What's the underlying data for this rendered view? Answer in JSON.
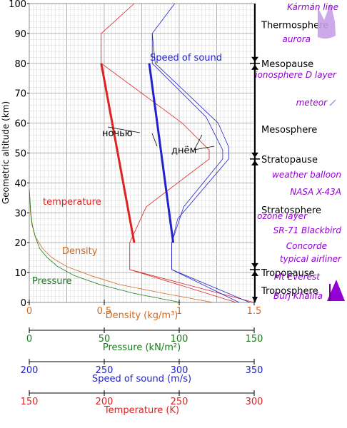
{
  "chart_data": {
    "type": "line",
    "ylabel": "Geometric altitude (km)",
    "ylim": [
      0,
      100
    ],
    "yticks": [
      0,
      10,
      20,
      30,
      40,
      50,
      60,
      70,
      80,
      90,
      100
    ],
    "axes": [
      {
        "key": "density",
        "label": "Density (kg/m³)",
        "range": [
          0,
          1.5
        ],
        "ticks": [
          "0",
          "0.5",
          "1",
          "1.5"
        ],
        "tickvals": [
          0,
          0.5,
          1,
          1.5
        ],
        "color": "#d2691e"
      },
      {
        "key": "pressure",
        "label": "Pressure (kN/m²)",
        "range": [
          0,
          150
        ],
        "ticks": [
          "0",
          "50",
          "100",
          "150"
        ],
        "tickvals": [
          0,
          50,
          100,
          150
        ],
        "color": "#1a7a1a"
      },
      {
        "key": "sound",
        "label": "Speed of sound (m/s)",
        "range": [
          200,
          350
        ],
        "ticks": [
          "200",
          "250",
          "300",
          "350"
        ],
        "tickvals": [
          200,
          250,
          300,
          350
        ],
        "color": "#2222cc"
      },
      {
        "key": "temperature",
        "label": "Temperature (K)",
        "range": [
          150,
          300
        ],
        "ticks": [
          "150",
          "200",
          "250",
          "300"
        ],
        "tickvals": [
          150,
          200,
          250,
          300
        ],
        "color": "#dd2222"
      }
    ],
    "series": [
      {
        "name": "temperature",
        "axis": "temperature",
        "color": "#dd2222",
        "style": "thin",
        "points": [
          [
            288,
            0
          ],
          [
            217,
            11
          ],
          [
            217,
            20
          ],
          [
            228,
            32
          ],
          [
            270,
            48
          ],
          [
            270,
            51
          ],
          [
            252,
            60
          ],
          [
            198,
            80
          ],
          [
            198,
            90
          ],
          [
            220,
            100
          ]
        ]
      },
      {
        "name": "temperature-envelope",
        "axis": "temperature",
        "color": "#dd2222",
        "style": "thin",
        "points": [
          [
            300,
            0
          ],
          [
            217,
            11
          ]
        ]
      },
      {
        "name": "Speed of sound",
        "axis": "sound",
        "color": "#2222cc",
        "style": "thin",
        "points": [
          [
            340,
            0
          ],
          [
            295,
            11
          ],
          [
            295,
            20
          ],
          [
            303,
            32
          ],
          [
            329,
            48
          ],
          [
            329,
            51
          ],
          [
            318,
            62
          ],
          [
            282,
            80
          ],
          [
            282,
            90
          ],
          [
            297,
            100
          ]
        ]
      },
      {
        "name": "sound-envelope",
        "axis": "sound",
        "color": "#2222cc",
        "style": "thin",
        "points": [
          [
            347,
            0
          ],
          [
            295,
            11
          ],
          [
            295,
            20
          ],
          [
            299,
            28
          ],
          [
            333,
            48
          ],
          [
            333,
            52
          ],
          [
            326,
            60
          ],
          [
            284,
            80
          ],
          [
            282,
            90
          ]
        ]
      },
      {
        "name": "Density",
        "axis": "density",
        "color": "#d2691e",
        "style": "thin",
        "points": [
          [
            1.225,
            0
          ],
          [
            0.9,
            3
          ],
          [
            0.6,
            6
          ],
          [
            0.41,
            9
          ],
          [
            0.25,
            12
          ],
          [
            0.15,
            15
          ],
          [
            0.09,
            18
          ],
          [
            0.04,
            22
          ],
          [
            0.018,
            26
          ],
          [
            0.008,
            30
          ],
          [
            0,
            38
          ]
        ]
      },
      {
        "name": "Pressure",
        "axis": "pressure",
        "color": "#1a7a1a",
        "style": "thin",
        "points": [
          [
            101,
            0
          ],
          [
            70,
            3
          ],
          [
            47,
            6
          ],
          [
            30,
            9
          ],
          [
            19,
            12
          ],
          [
            12,
            15
          ],
          [
            7,
            18
          ],
          [
            4,
            22
          ],
          [
            2,
            26
          ],
          [
            1,
            30
          ],
          [
            0,
            38
          ]
        ]
      },
      {
        "name": "ночью",
        "axis": "temperature",
        "color": "#dd2222",
        "style": "thick",
        "points": [
          [
            198,
            80
          ],
          [
            220,
            20
          ]
        ]
      },
      {
        "name": "днём",
        "axis": "sound",
        "color": "#2222cc",
        "style": "thick",
        "points": [
          [
            280,
            80
          ],
          [
            296,
            20
          ]
        ]
      }
    ],
    "labels": [
      {
        "text": "Speed of sound",
        "color": "#2222cc"
      },
      {
        "text": "temperature",
        "color": "#dd2222"
      },
      {
        "text": "Density",
        "color": "#d2691e"
      },
      {
        "text": "Pressure",
        "color": "#1a7a1a"
      },
      {
        "text": "ночью",
        "color": "#000000"
      },
      {
        "text": "днём",
        "color": "#000000"
      }
    ],
    "layers": [
      {
        "name": "Thermosphere",
        "alt": 93,
        "boundary": null
      },
      {
        "name": "Mesopause",
        "alt": 80,
        "boundary": 80
      },
      {
        "name": "Mesosphere",
        "alt": 58,
        "boundary": null
      },
      {
        "name": "Stratopause",
        "alt": 48,
        "boundary": 48
      },
      {
        "name": "Stratosphere",
        "alt": 31,
        "boundary": null
      },
      {
        "name": "Tropopause",
        "alt": 10,
        "boundary": 11
      },
      {
        "name": "Troposphere",
        "alt": 4,
        "boundary": null
      }
    ],
    "annotations": [
      {
        "text": "Kármán line",
        "alt": 100
      },
      {
        "text": "aurora",
        "alt": 86
      },
      {
        "text": "ionosphere D layer",
        "alt": 75
      },
      {
        "text": "meteor",
        "alt": 65
      },
      {
        "text": "weather balloon",
        "alt": 40
      },
      {
        "text": "NASA X-43A",
        "alt": 34
      },
      {
        "text": "ozone layer",
        "alt": 27
      },
      {
        "text": "SR-71 Blackbird",
        "alt": 22
      },
      {
        "text": "Concorde",
        "alt": 17
      },
      {
        "text": "typical airliner",
        "alt": 12
      },
      {
        "text": "Mt Everest",
        "alt": 7
      },
      {
        "text": "Burj Khalifa",
        "alt": 1
      }
    ]
  }
}
